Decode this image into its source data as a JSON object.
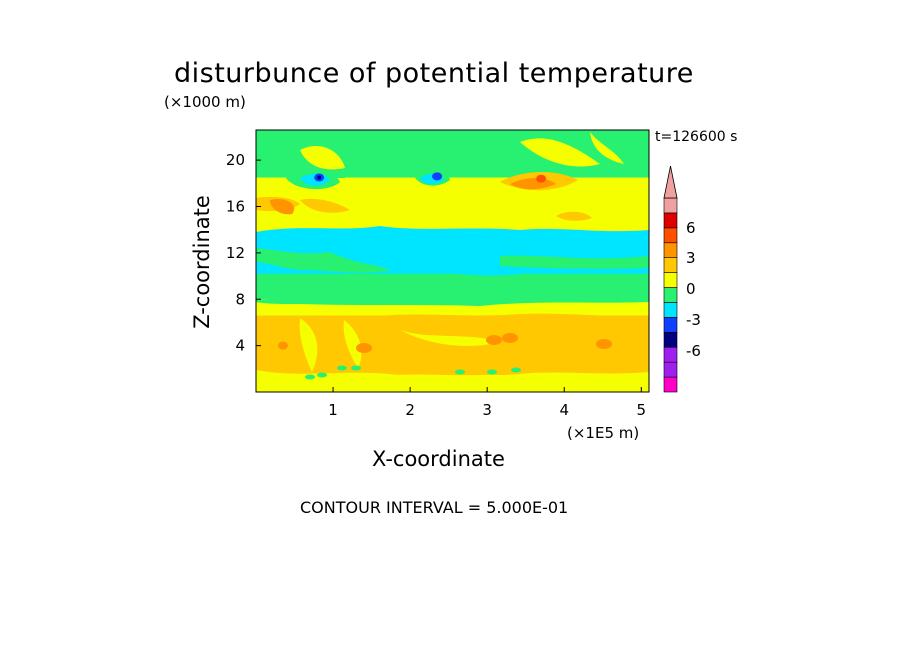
{
  "colors": {
    "magenta": "#ff00c8",
    "purple": "#a020f0",
    "navy": "#000080",
    "blue": "#1040ff",
    "cyan": "#00e5ff",
    "green": "#28f070",
    "yellow": "#f5ff00",
    "gold": "#ffc800",
    "orange": "#ff9400",
    "red_orange": "#ff5000",
    "red": "#e00000",
    "pink": "#f0a0a0",
    "frame": "#000000"
  },
  "chart_data": {
    "type": "heatmap",
    "title": "disturbunce of potential temperature",
    "xlabel": "X-coordinate",
    "ylabel": "Z-coordinate",
    "x_unit": "(×1E5 m)",
    "y_unit": "(×1000 m)",
    "timestamp": "t=126600 s",
    "footer": "CONTOUR INTERVAL = 5.000E-01",
    "xlim": [
      0,
      5.1
    ],
    "ylim": [
      0,
      22.6
    ],
    "x_ticks": [
      1,
      2,
      3,
      4,
      5
    ],
    "x_tick_labels": [
      "1",
      "2",
      "3",
      "4",
      "5"
    ],
    "y_ticks": [
      4,
      8,
      12,
      16,
      20
    ],
    "y_tick_labels": [
      "4",
      "8",
      "12",
      "16",
      "20"
    ],
    "colorbar": {
      "labels": [
        {
          "value": 6,
          "text": "6"
        },
        {
          "value": 3,
          "text": "3"
        },
        {
          "value": 0,
          "text": "0"
        },
        {
          "value": -3,
          "text": "-3"
        },
        {
          "value": -6,
          "text": "-6"
        }
      ],
      "levels": [
        {
          "name": "magenta",
          "color": "#ff00c8"
        },
        {
          "name": "purple",
          "color": "#a020f0"
        },
        {
          "name": "purple",
          "color": "#a020f0"
        },
        {
          "name": "navy",
          "color": "#000080"
        },
        {
          "name": "blue",
          "color": "#1040ff"
        },
        {
          "name": "cyan",
          "color": "#00e5ff"
        },
        {
          "name": "green",
          "color": "#28f070"
        },
        {
          "name": "yellow",
          "color": "#f5ff00"
        },
        {
          "name": "gold",
          "color": "#ffc800"
        },
        {
          "name": "orange",
          "color": "#ff9400"
        },
        {
          "name": "red-orange",
          "color": "#ff5000"
        },
        {
          "name": "red",
          "color": "#e00000"
        },
        {
          "name": "pink",
          "color": "#f0a0a0"
        }
      ],
      "extends": "both"
    },
    "regions": [
      {
        "name": "bottom-yellow",
        "color": "#f5ff00",
        "x": [
          0,
          5.1
        ],
        "z": [
          0.0,
          1.8
        ]
      },
      {
        "name": "lower-gold-band",
        "color": "#ffc800",
        "x": [
          0,
          5.1
        ],
        "z": [
          1.8,
          6.6
        ]
      },
      {
        "name": "yellow-band",
        "color": "#f5ff00",
        "x": [
          0,
          5.1
        ],
        "z": [
          6.6,
          8.0
        ]
      },
      {
        "name": "green-band",
        "color": "#28f070",
        "x": [
          0,
          5.1
        ],
        "z": [
          8.0,
          13.2
        ]
      },
      {
        "name": "cyan-band",
        "color": "#00e5ff",
        "x": [
          0,
          5.1
        ],
        "z": [
          10.2,
          12.8
        ]
      },
      {
        "name": "upper-yellow-band",
        "color": "#f5ff00",
        "x": [
          0,
          5.1
        ],
        "z": [
          13.6,
          18.5
        ]
      },
      {
        "name": "top-green",
        "color": "#28f070",
        "x": [
          0,
          5.1
        ],
        "z": [
          18.5,
          22.6
        ]
      }
    ],
    "features": [
      {
        "name": "cold-core-1",
        "color": "#1040ff",
        "x": 0.82,
        "z": 18.5
      },
      {
        "name": "cold-core-2",
        "color": "#1040ff",
        "x": 2.35,
        "z": 18.6
      },
      {
        "name": "warm-core-upper",
        "color": "#ff5000",
        "x": 3.7,
        "z": 18.4
      },
      {
        "name": "warm-core-left",
        "color": "#ff9400",
        "x": 0.4,
        "z": 15.9
      },
      {
        "name": "warm-core-lower",
        "color": "#ff9400",
        "x": 0.35,
        "z": 4.0
      }
    ]
  }
}
